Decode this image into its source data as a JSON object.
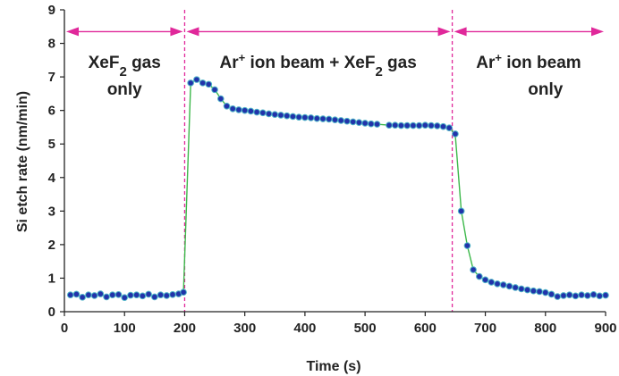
{
  "chart_data": {
    "type": "scatter",
    "title": "",
    "xlabel": "Time (s)",
    "ylabel": "Si etch rate (nm/min)",
    "xlim": [
      0,
      900
    ],
    "ylim": [
      0,
      9
    ],
    "xticks": [
      "0",
      "100",
      "200",
      "300",
      "400",
      "500",
      "600",
      "700",
      "800",
      "900"
    ],
    "yticks": [
      "0",
      "1",
      "2",
      "3",
      "4",
      "5",
      "6",
      "7",
      "8",
      "9"
    ],
    "grid": false,
    "colors": {
      "marker_fill": "#2233aa",
      "marker_edge": "#4fb4c8",
      "line": "#3cb84a",
      "annotation": "#e0289a"
    },
    "regions": [
      {
        "start": 0,
        "end": 200,
        "line1": "XeF",
        "line1_sub": "2",
        "line1_tail": " gas",
        "line2": "only"
      },
      {
        "start": 200,
        "end": 645,
        "line1_a": "Ar",
        "line1_sup": "+",
        "line1_b": " ion beam + XeF",
        "line1_sub": "2",
        "line1_c": " gas"
      },
      {
        "start": 645,
        "end": 900,
        "line1": "Ar",
        "line1_sup": "+",
        "line1_tail": " ion beam",
        "line2": "only"
      }
    ],
    "dividers": [
      200,
      645
    ],
    "arrow_level": 8.35,
    "series": [
      {
        "name": "Si etch rate",
        "points": [
          [
            10,
            0.5
          ],
          [
            20,
            0.52
          ],
          [
            30,
            0.43
          ],
          [
            40,
            0.5
          ],
          [
            50,
            0.48
          ],
          [
            60,
            0.53
          ],
          [
            70,
            0.44
          ],
          [
            80,
            0.5
          ],
          [
            90,
            0.51
          ],
          [
            100,
            0.42
          ],
          [
            110,
            0.49
          ],
          [
            120,
            0.5
          ],
          [
            130,
            0.47
          ],
          [
            140,
            0.52
          ],
          [
            150,
            0.44
          ],
          [
            160,
            0.5
          ],
          [
            170,
            0.48
          ],
          [
            180,
            0.51
          ],
          [
            190,
            0.53
          ],
          [
            198,
            0.58
          ],
          [
            210,
            6.82
          ],
          [
            220,
            6.92
          ],
          [
            230,
            6.82
          ],
          [
            240,
            6.78
          ],
          [
            250,
            6.62
          ],
          [
            260,
            6.35
          ],
          [
            270,
            6.13
          ],
          [
            280,
            6.05
          ],
          [
            290,
            6.02
          ],
          [
            300,
            6.0
          ],
          [
            310,
            5.98
          ],
          [
            320,
            5.95
          ],
          [
            330,
            5.93
          ],
          [
            340,
            5.9
          ],
          [
            350,
            5.88
          ],
          [
            360,
            5.86
          ],
          [
            370,
            5.84
          ],
          [
            380,
            5.82
          ],
          [
            390,
            5.8
          ],
          [
            400,
            5.79
          ],
          [
            410,
            5.78
          ],
          [
            420,
            5.76
          ],
          [
            430,
            5.75
          ],
          [
            440,
            5.74
          ],
          [
            450,
            5.72
          ],
          [
            460,
            5.7
          ],
          [
            470,
            5.68
          ],
          [
            480,
            5.66
          ],
          [
            490,
            5.64
          ],
          [
            500,
            5.62
          ],
          [
            510,
            5.6
          ],
          [
            520,
            5.59
          ],
          [
            540,
            5.56
          ],
          [
            550,
            5.56
          ],
          [
            560,
            5.55
          ],
          [
            570,
            5.55
          ],
          [
            580,
            5.55
          ],
          [
            590,
            5.55
          ],
          [
            600,
            5.56
          ],
          [
            610,
            5.55
          ],
          [
            620,
            5.54
          ],
          [
            630,
            5.52
          ],
          [
            640,
            5.48
          ],
          [
            650,
            5.3
          ],
          [
            660,
            3.0
          ],
          [
            670,
            1.97
          ],
          [
            680,
            1.25
          ],
          [
            690,
            1.05
          ],
          [
            700,
            0.95
          ],
          [
            710,
            0.88
          ],
          [
            720,
            0.83
          ],
          [
            730,
            0.8
          ],
          [
            740,
            0.76
          ],
          [
            750,
            0.72
          ],
          [
            760,
            0.68
          ],
          [
            770,
            0.65
          ],
          [
            780,
            0.62
          ],
          [
            790,
            0.6
          ],
          [
            800,
            0.57
          ],
          [
            810,
            0.52
          ],
          [
            820,
            0.45
          ],
          [
            830,
            0.48
          ],
          [
            840,
            0.5
          ],
          [
            850,
            0.47
          ],
          [
            860,
            0.5
          ],
          [
            870,
            0.48
          ],
          [
            880,
            0.51
          ],
          [
            890,
            0.47
          ],
          [
            900,
            0.49
          ]
        ]
      }
    ]
  }
}
